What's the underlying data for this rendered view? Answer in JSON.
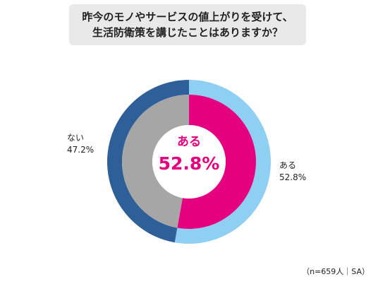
{
  "title_line1": "昨今のモノやサービスの値上がりを受けて、",
  "title_line2": "生活防衛策を講じたことはありますか？",
  "footnote": "（n=659人｜SA）",
  "colors": {
    "outer_yes": "#8ecff3",
    "outer_no": "#2f5f98",
    "inner_yes": "#e5007f",
    "inner_no": "#a6a6a6",
    "accent": "#e5007f"
  },
  "chart_data": {
    "type": "pie",
    "variant": "double-ring donut",
    "categories": [
      "ある",
      "ない"
    ],
    "values": [
      52.8,
      47.2
    ],
    "labels": [
      {
        "name": "ある",
        "value_text": "52.8%"
      },
      {
        "name": "ない",
        "value_text": "47.2%"
      }
    ],
    "center": {
      "label": "ある",
      "value_text": "52.8%"
    }
  }
}
